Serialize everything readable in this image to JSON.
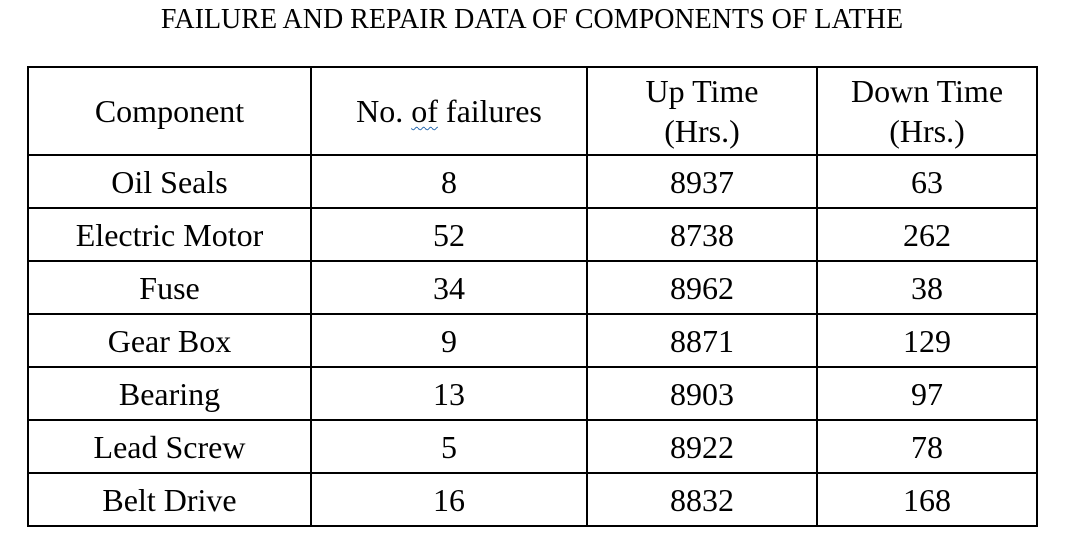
{
  "document": {
    "title": "FAILURE AND REPAIR DATA OF COMPONENTS OF LATHE"
  },
  "table": {
    "headers": {
      "component": "Component",
      "failures_prefix": "No. ",
      "failures_of": "of",
      "failures_suffix": " failures",
      "uptime_line1": "Up Time",
      "uptime_line2": "(Hrs.)",
      "downtime_line1": "Down Time",
      "downtime_line2": "(Hrs.)"
    },
    "rows": [
      {
        "component": "Oil Seals",
        "failures": "8",
        "up_time": "8937",
        "down_time": "63"
      },
      {
        "component": "Electric Motor",
        "failures": "52",
        "up_time": "8738",
        "down_time": "262"
      },
      {
        "component": "Fuse",
        "failures": "34",
        "up_time": "8962",
        "down_time": "38"
      },
      {
        "component": "Gear Box",
        "failures": "9",
        "up_time": "8871",
        "down_time": "129"
      },
      {
        "component": "Bearing",
        "failures": "13",
        "up_time": "8903",
        "down_time": "97"
      },
      {
        "component": "Lead Screw",
        "failures": "5",
        "up_time": "8922",
        "down_time": "78"
      },
      {
        "component": "Belt Drive",
        "failures": "16",
        "up_time": "8832",
        "down_time": "168"
      }
    ]
  }
}
